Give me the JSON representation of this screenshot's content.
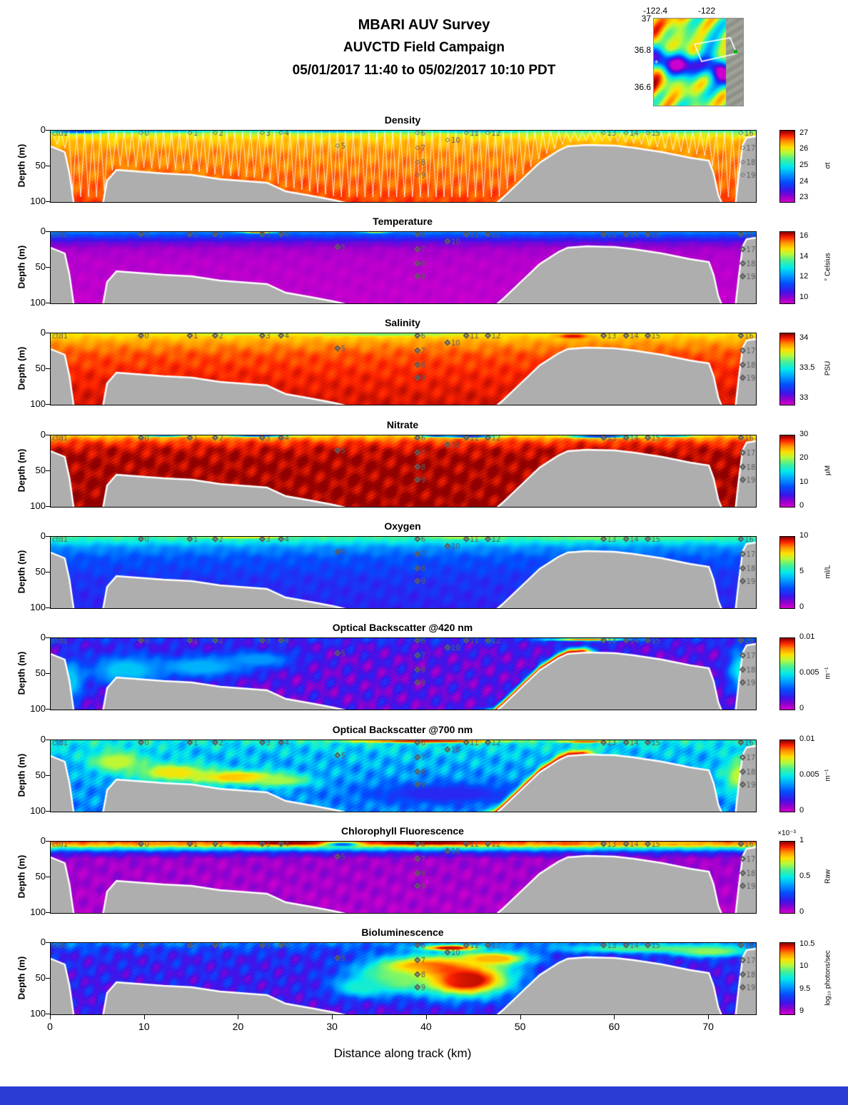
{
  "header": {
    "line1": "MBARI AUV Survey",
    "line2": "AUVCTD Field Campaign",
    "line3": "05/01/2017 11:40  to 05/02/2017 10:10 PDT"
  },
  "map_inset": {
    "lon_ticks": [
      "-122.4",
      "-122"
    ],
    "lat_ticks": [
      "37",
      "36.8",
      "36.6"
    ]
  },
  "chart_data": {
    "type": "heatmap",
    "xlabel": "Distance along track (km)",
    "x_range": [
      0,
      75
    ],
    "x_ticks": [
      0,
      10,
      20,
      30,
      40,
      50,
      60,
      70
    ],
    "ylabel": "Depth (m)",
    "depth_range": [
      0,
      100
    ],
    "y_ticks": [
      0,
      50,
      100
    ],
    "colormap_hint": "jet-like, magenta at low end, dark red at high end",
    "seafloor_km_depth": [
      [
        0,
        22
      ],
      [
        1.5,
        30
      ],
      [
        2,
        60
      ],
      [
        2.5,
        106
      ],
      [
        5.5,
        106
      ],
      [
        6,
        70
      ],
      [
        7,
        55
      ],
      [
        9,
        57
      ],
      [
        12,
        60
      ],
      [
        15,
        62
      ],
      [
        18,
        68
      ],
      [
        20,
        70
      ],
      [
        23,
        73
      ],
      [
        25,
        85
      ],
      [
        28,
        92
      ],
      [
        30,
        97
      ],
      [
        32,
        103
      ],
      [
        33,
        106
      ],
      [
        47,
        106
      ],
      [
        48,
        95
      ],
      [
        50,
        70
      ],
      [
        52,
        45
      ],
      [
        54,
        28
      ],
      [
        55,
        22
      ],
      [
        57,
        20
      ],
      [
        60,
        21
      ],
      [
        62,
        24
      ],
      [
        65,
        30
      ],
      [
        68,
        38
      ],
      [
        70,
        42
      ],
      [
        70.5,
        60
      ],
      [
        71,
        90
      ],
      [
        71.5,
        106
      ],
      [
        72.8,
        106
      ],
      [
        73.2,
        60
      ],
      [
        73.6,
        20
      ],
      [
        74,
        10
      ],
      [
        75,
        8
      ]
    ],
    "waypoints": [
      {
        "label": "ctd1",
        "km": 0.3,
        "depth": 3
      },
      {
        "label": "0",
        "km": 9.6,
        "depth": 3
      },
      {
        "label": "1",
        "km": 14.8,
        "depth": 3
      },
      {
        "label": "2",
        "km": 17.5,
        "depth": 3
      },
      {
        "label": "3",
        "km": 22.5,
        "depth": 3
      },
      {
        "label": "4",
        "km": 24.5,
        "depth": 3
      },
      {
        "label": "5",
        "km": 30.5,
        "depth": 21
      },
      {
        "label": "6",
        "km": 39.0,
        "depth": 3
      },
      {
        "label": "7",
        "km": 39.0,
        "depth": 24
      },
      {
        "label": "8",
        "km": 39.0,
        "depth": 44
      },
      {
        "label": "9",
        "km": 39.0,
        "depth": 62
      },
      {
        "label": "10",
        "km": 42.2,
        "depth": 13
      },
      {
        "label": "11",
        "km": 44.2,
        "depth": 3
      },
      {
        "label": "12",
        "km": 46.5,
        "depth": 3
      },
      {
        "label": "13",
        "km": 58.8,
        "depth": 3
      },
      {
        "label": "14",
        "km": 61.2,
        "depth": 3
      },
      {
        "label": "15",
        "km": 63.5,
        "depth": 3
      },
      {
        "label": "16",
        "km": 73.4,
        "depth": 3
      },
      {
        "label": "17",
        "km": 73.6,
        "depth": 24
      },
      {
        "label": "18",
        "km": 73.6,
        "depth": 44
      },
      {
        "label": "19",
        "km": 73.6,
        "depth": 62
      }
    ],
    "panels": [
      {
        "title": "Density",
        "unit": "σt",
        "range": [
          22.8,
          27.2
        ],
        "tick_values": [
          27,
          26,
          25,
          24,
          23
        ],
        "ticks": [
          "27",
          "26",
          "25",
          "24",
          "23"
        ],
        "profile": {
          "depths": [
            0,
            3,
            8,
            15,
            30,
            60,
            100
          ],
          "values": [
            25.2,
            25.8,
            26.15,
            26.35,
            26.55,
            26.65,
            26.8
          ]
        },
        "features": [
          {
            "km": 3,
            "depth": 1.5,
            "rk": 2.5,
            "rd": 2,
            "value": 23.9
          },
          {
            "km": 12,
            "depth": 1,
            "rk": 5,
            "rd": 1.5,
            "value": 24.8
          },
          {
            "km": 30,
            "depth": 1,
            "rk": 6,
            "rd": 1.5,
            "value": 24.6
          },
          {
            "km": 45,
            "depth": 1,
            "rk": 5,
            "rd": 1.5,
            "value": 24.8
          },
          {
            "km": 62,
            "depth": 1,
            "rk": 6,
            "rd": 1.5,
            "value": 25.0
          }
        ],
        "noise": 0.035,
        "show_track": true
      },
      {
        "title": "Temperature",
        "unit": "° Celsius",
        "range": [
          9.5,
          16.5
        ],
        "tick_values": [
          16,
          14,
          12,
          10
        ],
        "ticks": [
          "16",
          "14",
          "12",
          "10"
        ],
        "profile": {
          "depths": [
            0,
            3,
            8,
            15,
            25,
            40,
            100
          ],
          "values": [
            12.0,
            11.6,
            11.0,
            10.3,
            9.85,
            9.7,
            9.6
          ]
        },
        "features": [
          {
            "km": 22,
            "depth": 0.5,
            "rk": 1.6,
            "rd": 1.2,
            "value": 15.5
          },
          {
            "km": 34.5,
            "depth": 0.5,
            "rk": 1.2,
            "rd": 1,
            "value": 14.6
          }
        ],
        "noise": 0.02
      },
      {
        "title": "Salinity",
        "unit": "PSU",
        "range": [
          32.9,
          34.1
        ],
        "tick_values": [
          34,
          33.5,
          33
        ],
        "ticks": [
          "34",
          "33.5",
          "33"
        ],
        "profile": {
          "depths": [
            0,
            5,
            15,
            30,
            60,
            100
          ],
          "values": [
            33.8,
            33.85,
            33.92,
            33.98,
            34.02,
            34.05
          ]
        },
        "features": [
          {
            "km": 36,
            "depth": 1.5,
            "rk": 7,
            "rd": 2,
            "value": 33.68
          },
          {
            "km": 20,
            "depth": 1,
            "rk": 5,
            "rd": 1.5,
            "value": 33.72
          },
          {
            "km": 55.5,
            "depth": 4,
            "rk": 1.5,
            "rd": 3,
            "value": 34.05
          }
        ],
        "noise": 0.03
      },
      {
        "title": "Nitrate",
        "unit": "µM",
        "range": [
          0,
          30
        ],
        "tick_values": [
          30,
          20,
          10,
          0
        ],
        "ticks": [
          "30",
          "20",
          "10",
          "0"
        ],
        "profile": {
          "depths": [
            0,
            4,
            10,
            20,
            35,
            100
          ],
          "values": [
            23,
            25.5,
            27.5,
            29,
            29.5,
            29.7
          ]
        },
        "features": [
          {
            "km": 44.5,
            "depth": 1.5,
            "rk": 2.5,
            "rd": 1.6,
            "value": 5
          },
          {
            "km": 41,
            "depth": 1,
            "rk": 1.5,
            "rd": 1.2,
            "value": 9
          },
          {
            "km": 22,
            "depth": 0.8,
            "rk": 3,
            "rd": 1.2,
            "value": 9
          },
          {
            "km": 12,
            "depth": 0.8,
            "rk": 2,
            "rd": 1,
            "value": 12
          },
          {
            "km": 58.5,
            "depth": 1.5,
            "rk": 3,
            "rd": 1.8,
            "value": 6
          },
          {
            "km": 66,
            "depth": 1,
            "rk": 2,
            "rd": 1.2,
            "value": 12
          }
        ],
        "noise": 0.05
      },
      {
        "title": "Oxygen",
        "unit": "ml/L",
        "range": [
          0,
          10
        ],
        "tick_values": [
          10,
          5,
          0
        ],
        "ticks": [
          "10",
          "5",
          "0"
        ],
        "profile": {
          "depths": [
            0,
            6,
            15,
            30,
            60,
            100
          ],
          "values": [
            6.0,
            5.2,
            3.8,
            2.8,
            2.2,
            1.9
          ]
        },
        "features": [
          {
            "km": 22,
            "depth": 0.5,
            "rk": 1.5,
            "rd": 1,
            "value": 9.4
          },
          {
            "km": 20,
            "depth": 1,
            "rk": 4,
            "rd": 1.5,
            "value": 7.2
          },
          {
            "km": 44,
            "depth": 1.5,
            "rk": 3,
            "rd": 1.5,
            "value": 7.0
          },
          {
            "km": 58,
            "depth": 2,
            "rk": 5,
            "rd": 2.5,
            "value": 6.4
          },
          {
            "km": 67,
            "depth": 2,
            "rk": 4,
            "rd": 2,
            "value": 6.0
          }
        ],
        "noise": 0.04
      },
      {
        "title": "Optical Backscatter @420 nm",
        "unit": "m⁻¹",
        "range": [
          0,
          0.01
        ],
        "tick_values": [
          0.01,
          0.005,
          0
        ],
        "ticks": [
          "0.01",
          "0.005",
          "0"
        ],
        "profile": {
          "depths": [
            0,
            10,
            30,
            100
          ],
          "values": [
            0.0022,
            0.0016,
            0.0013,
            0.0013
          ]
        },
        "features": [
          {
            "km": 8,
            "depth": 45,
            "rk": 4,
            "rd": 22,
            "value": 0.0045
          },
          {
            "km": 16,
            "depth": 40,
            "rk": 5,
            "rd": 16,
            "value": 0.0042
          },
          {
            "km": 22,
            "depth": 30,
            "rk": 4,
            "rd": 12,
            "value": 0.0038
          },
          {
            "km": 2,
            "depth": 60,
            "rk": 1.5,
            "rd": 30,
            "value": 0.0045
          },
          {
            "km": 57,
            "depth": 2,
            "rk": 4,
            "rd": 1.8,
            "value": 0.0085
          },
          {
            "km": 73.5,
            "depth": 45,
            "rk": 1.5,
            "rd": 30,
            "value": 0.005
          },
          {
            "bottom": true,
            "km0": 45,
            "km1": 58.5,
            "thickness": 7,
            "value": 0.0095
          },
          {
            "bottom": true,
            "km0": 6,
            "km1": 10,
            "thickness": 4,
            "value": 0.004
          }
        ],
        "noise": 0.1
      },
      {
        "title": "Optical Backscatter @700 nm",
        "unit": "m⁻¹",
        "range": [
          0,
          0.01
        ],
        "tick_values": [
          0.01,
          0.005,
          0
        ],
        "ticks": [
          "0.01",
          "0.005",
          "0"
        ],
        "profile": {
          "depths": [
            0,
            15,
            40,
            100
          ],
          "values": [
            0.0052,
            0.0045,
            0.004,
            0.0036
          ]
        },
        "features": [
          {
            "km": 7,
            "depth": 30,
            "rk": 3,
            "rd": 16,
            "value": 0.007
          },
          {
            "km": 13,
            "depth": 45,
            "rk": 4,
            "rd": 13,
            "value": 0.0075
          },
          {
            "km": 20,
            "depth": 52,
            "rk": 5,
            "rd": 10,
            "value": 0.008
          },
          {
            "km": 24.5,
            "depth": 57,
            "rk": 3,
            "rd": 8,
            "value": 0.0068
          },
          {
            "km": 40,
            "depth": 1.5,
            "rk": 8,
            "rd": 2,
            "value": 0.0095
          },
          {
            "km": 42,
            "depth": 75,
            "rk": 9,
            "rd": 16,
            "value": 0.002
          },
          {
            "km": 73.5,
            "depth": 50,
            "rk": 2,
            "rd": 26,
            "value": 0.007
          },
          {
            "km": 57,
            "depth": 2,
            "rk": 3,
            "rd": 1.6,
            "value": 0.009
          },
          {
            "bottom": true,
            "km0": 45,
            "km1": 58.5,
            "thickness": 7,
            "value": 0.0095
          }
        ],
        "noise": 0.12
      },
      {
        "title": "Chlorophyll Fluorescence",
        "unit": "Raw",
        "colorbar_header": "×10⁻³",
        "range": [
          0,
          1
        ],
        "tick_values": [
          1,
          0.5,
          0
        ],
        "ticks": [
          "1",
          "0.5",
          "0"
        ],
        "profile": {
          "depths": [
            0,
            5,
            10,
            16,
            25,
            100
          ],
          "values": [
            0.92,
            0.8,
            0.5,
            0.18,
            0.06,
            0.04
          ]
        },
        "features": [
          {
            "km": 25,
            "depth": 2,
            "rk": 5,
            "rd": 2.5,
            "value": 1.0
          },
          {
            "km": 40,
            "depth": 2,
            "rk": 6,
            "rd": 2.5,
            "value": 1.0
          },
          {
            "km": 31,
            "depth": 4,
            "rk": 1.6,
            "rd": 3,
            "value": 0.3
          },
          {
            "km": 12,
            "depth": 3,
            "rk": 3,
            "rd": 2,
            "value": 0.85
          },
          {
            "km": 55,
            "depth": 3,
            "rk": 2,
            "rd": 2,
            "value": 0.9
          },
          {
            "km": 65,
            "depth": 2,
            "rk": 6,
            "rd": 1.8,
            "value": 0.8
          }
        ],
        "noise": 0.05
      },
      {
        "title": "Bioluminescence",
        "unit": "log₁₀ photons/sec",
        "range": [
          8.95,
          10.55
        ],
        "tick_values": [
          10.5,
          10,
          9.5,
          9
        ],
        "ticks": [
          "10.5",
          "10",
          "9.5",
          "9"
        ],
        "profile": {
          "depths": [
            0,
            8,
            20,
            100
          ],
          "values": [
            9.5,
            9.35,
            9.25,
            9.2
          ]
        },
        "features": [
          {
            "km": 40,
            "depth": 35,
            "rk": 6,
            "rd": 18,
            "value": 10.35
          },
          {
            "km": 44,
            "depth": 52,
            "rk": 5,
            "rd": 24,
            "value": 10.5
          },
          {
            "km": 36.5,
            "depth": 52,
            "rk": 4,
            "rd": 18,
            "value": 10.0
          },
          {
            "km": 47,
            "depth": 22,
            "rk": 4,
            "rd": 10,
            "value": 10.25
          },
          {
            "km": 42.5,
            "depth": 7,
            "rk": 3,
            "rd": 4,
            "value": 10.5
          },
          {
            "km": 63,
            "depth": 8,
            "rk": 9,
            "rd": 6,
            "value": 9.9
          },
          {
            "km": 70,
            "depth": 12,
            "rk": 4,
            "rd": 8,
            "value": 10.0
          },
          {
            "km": 33,
            "depth": 62,
            "rk": 3,
            "rd": 14,
            "value": 9.8
          }
        ],
        "noise": 0.1
      }
    ]
  }
}
